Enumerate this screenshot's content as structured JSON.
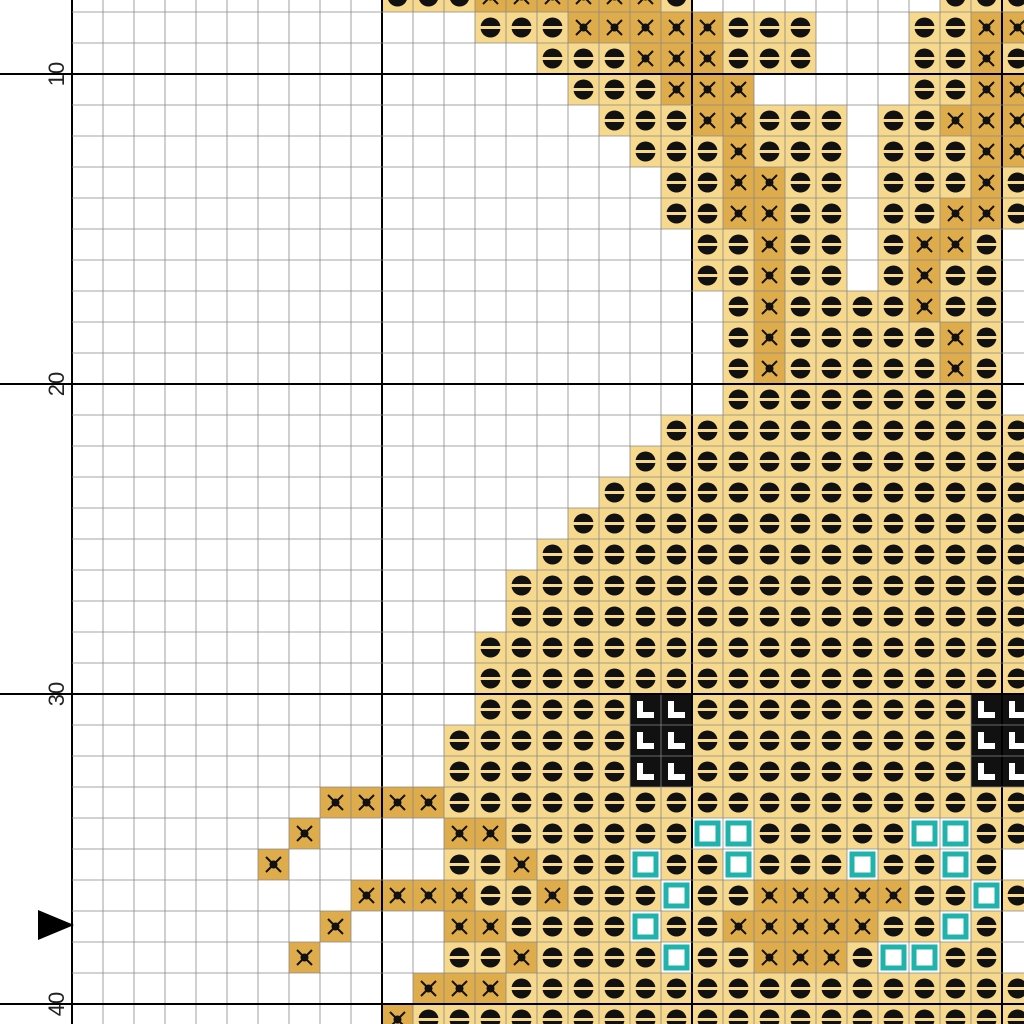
{
  "row_labels": [
    "10",
    "20",
    "30",
    "40"
  ]
}
